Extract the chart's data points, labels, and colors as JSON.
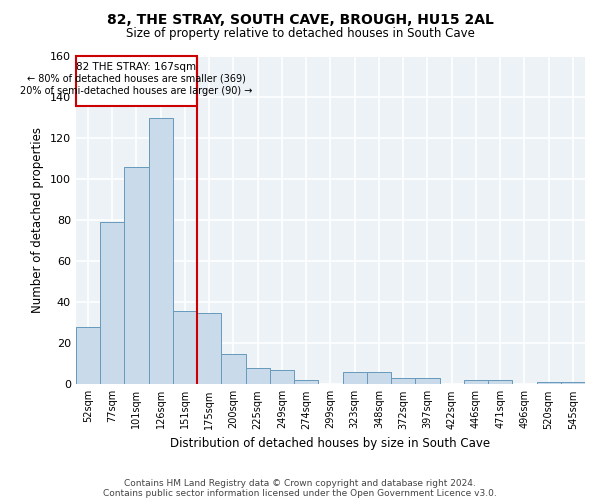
{
  "title": "82, THE STRAY, SOUTH CAVE, BROUGH, HU15 2AL",
  "subtitle": "Size of property relative to detached houses in South Cave",
  "xlabel": "Distribution of detached houses by size in South Cave",
  "ylabel": "Number of detached properties",
  "bar_color": "#c9daea",
  "bar_edge_color": "#6699bb",
  "categories": [
    "52sqm",
    "77sqm",
    "101sqm",
    "126sqm",
    "151sqm",
    "175sqm",
    "200sqm",
    "225sqm",
    "249sqm",
    "274sqm",
    "299sqm",
    "323sqm",
    "348sqm",
    "372sqm",
    "397sqm",
    "422sqm",
    "446sqm",
    "471sqm",
    "496sqm",
    "520sqm",
    "545sqm"
  ],
  "values": [
    28,
    79,
    106,
    130,
    36,
    35,
    15,
    8,
    7,
    2,
    0,
    6,
    6,
    3,
    3,
    0,
    2,
    2,
    0,
    1,
    1
  ],
  "ylim": [
    0,
    160
  ],
  "yticks": [
    0,
    20,
    40,
    60,
    80,
    100,
    120,
    140,
    160
  ],
  "property_label": "82 THE STRAY: 167sqm",
  "annotation_line1": "← 80% of detached houses are smaller (369)",
  "annotation_line2": "20% of semi-detached houses are larger (90) →",
  "annotation_box_color": "#cc0000",
  "footnote1": "Contains HM Land Registry data © Crown copyright and database right 2024.",
  "footnote2": "Contains public sector information licensed under the Open Government Licence v3.0.",
  "background_color": "#edf2f7",
  "grid_color": "#ffffff"
}
